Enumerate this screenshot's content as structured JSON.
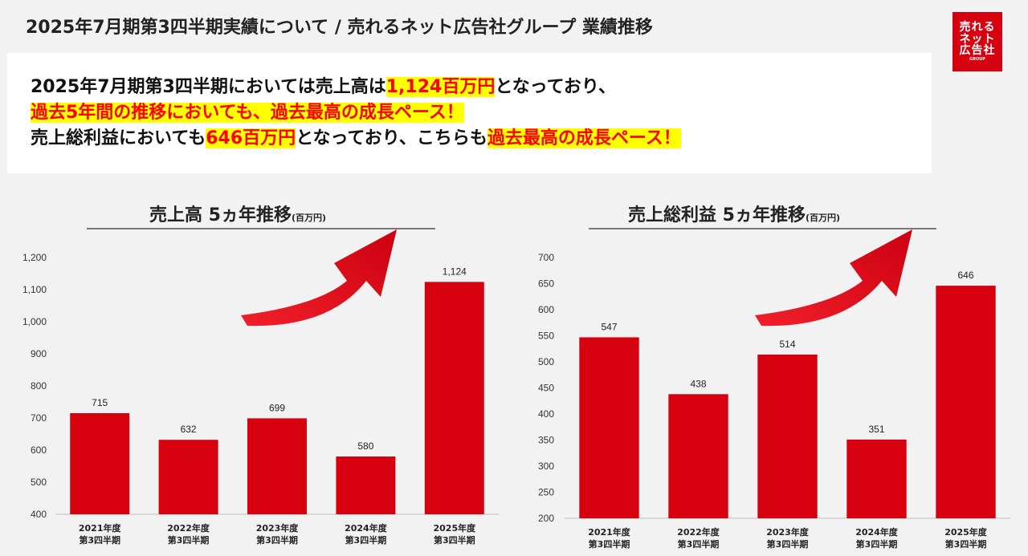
{
  "header": {
    "title": "2025年7月期第3四半期実績について / 売れるネット広告社グループ 業績推移"
  },
  "logo": {
    "line1": "売れる",
    "line2": "ネット",
    "line3": "広告社",
    "line4": "GROUP"
  },
  "summary": {
    "line1_a": "2025年7月期第3四半期においては売上高は",
    "line1_b": "1,124百万円",
    "line1_c": "となっており、",
    "line2": "過去5年間の推移においても、過去最高の成長ペース！",
    "line3_a": "売上総利益においても",
    "line3_b": "646百万円",
    "line3_c": "となっており、こちらも",
    "line3_d": "過去最高の成長ペース！"
  },
  "colors": {
    "bar": "#d7000f",
    "arrow": "#e8001c",
    "brand": "#d7000f",
    "highlight": "#ffff00"
  },
  "chart_data": [
    {
      "type": "bar",
      "title": "売上高 5ヵ年推移",
      "unit": "(百万円)",
      "categories": [
        "2021年度|第3四半期",
        "2022年度|第3四半期",
        "2023年度|第3四半期",
        "2024年度|第3四半期",
        "2025年度|第3四半期"
      ],
      "values": [
        715,
        632,
        699,
        580,
        1124
      ],
      "value_labels": [
        "715",
        "632",
        "699",
        "580",
        "1,124"
      ],
      "ylim": [
        400,
        1200
      ],
      "yticks": [
        400,
        500,
        600,
        700,
        800,
        900,
        1000,
        1100,
        1200
      ],
      "ytick_labels": [
        "400",
        "500",
        "600",
        "700",
        "800",
        "900",
        "1,000",
        "1,100",
        "1,200"
      ],
      "grid": false
    },
    {
      "type": "bar",
      "title": "売上総利益 5ヵ年推移",
      "unit": "(百万円)",
      "categories": [
        "2021年度|第3四半期",
        "2022年度|第3四半期",
        "2023年度|第3四半期",
        "2024年度|第3四半期",
        "2025年度|第3四半期"
      ],
      "values": [
        547,
        438,
        514,
        351,
        646
      ],
      "value_labels": [
        "547",
        "438",
        "514",
        "351",
        "646"
      ],
      "ylim": [
        200,
        700
      ],
      "yticks": [
        200,
        250,
        300,
        350,
        400,
        450,
        500,
        550,
        600,
        650,
        700
      ],
      "ytick_labels": [
        "200",
        "250",
        "300",
        "350",
        "400",
        "450",
        "500",
        "550",
        "600",
        "650",
        "700"
      ],
      "grid": false
    }
  ]
}
